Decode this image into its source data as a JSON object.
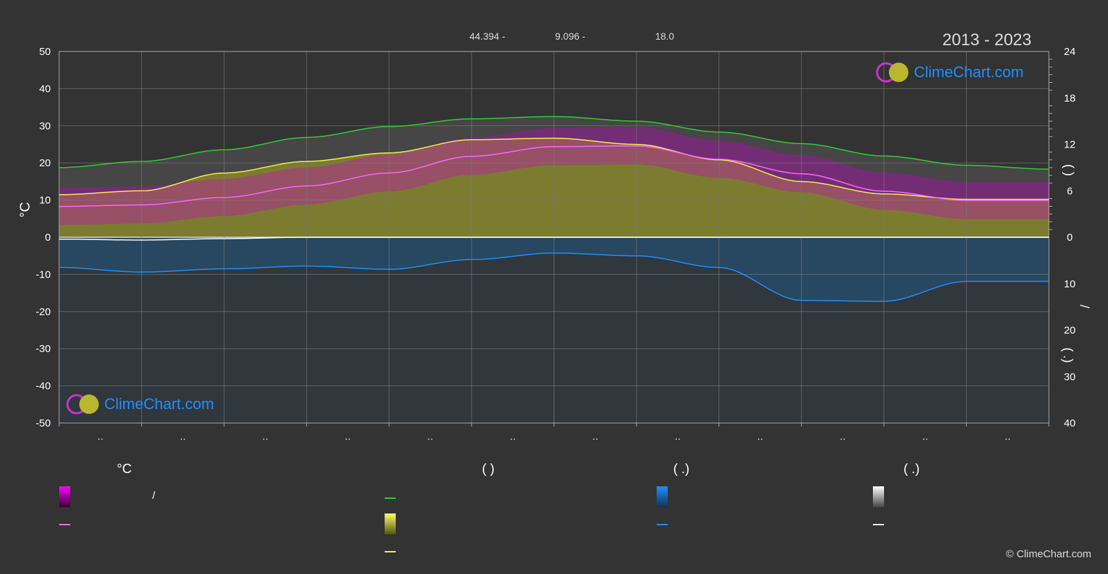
{
  "header": {
    "lat": "44.394 -",
    "lon": "9.096 -",
    "elev": "18.0",
    "range": "2013 - 2023"
  },
  "logo": {
    "text": "ClimeChart.com"
  },
  "copyright": "© ClimeChart.com",
  "axes": {
    "left_label": "°C",
    "right_top_label": "(   )",
    "right_bottom_label": "/",
    "right_bottom_label2": "(   .)"
  },
  "legend": {
    "col1_head": "°C",
    "col2_head": "(          )",
    "col3_head": "(   .)",
    "col4_head": "(   .)",
    "slash": "/"
  },
  "colors": {
    "background": "#333333",
    "grid": "#777777",
    "daylight": "#33cc33",
    "sunshine": "#f0f050",
    "temp_mean": "#ff66ff",
    "temp_range": "#cc00cc",
    "precip": "#1e90ff",
    "snow": "#ffffff",
    "logo_text": "#1e90ff"
  },
  "chart_data": {
    "type": "line",
    "title": "",
    "x_ticks": [
      "‥",
      "‥",
      "‥",
      "‥",
      "‥",
      "‥",
      "‥",
      "‥",
      "‥",
      "‥",
      "‥",
      "‥"
    ],
    "left_ylim": [
      -50,
      50
    ],
    "left_yticks": [
      50,
      40,
      30,
      20,
      10,
      0,
      -10,
      -20,
      -30,
      -40,
      -50
    ],
    "right_top_ylim": [
      0,
      24
    ],
    "right_top_yticks": [
      24,
      18,
      12,
      6,
      0
    ],
    "right_bottom_ylim": [
      0,
      40
    ],
    "right_bottom_yticks": [
      10,
      20,
      30,
      40
    ],
    "grid": true,
    "months_x": [
      0,
      1,
      2,
      3,
      4,
      5,
      6,
      7,
      8,
      9,
      10,
      11,
      12
    ],
    "series": [
      {
        "key": "daylight",
        "values": [
          9.0,
          9.8,
          11.3,
          12.9,
          14.3,
          15.3,
          15.6,
          15.0,
          13.6,
          12.1,
          10.5,
          9.3,
          8.8
        ]
      },
      {
        "key": "sunshine",
        "values": [
          5.5,
          6.0,
          8.3,
          9.8,
          10.9,
          12.6,
          12.8,
          12.0,
          10.0,
          7.2,
          5.6,
          4.9,
          4.9
        ]
      },
      {
        "key": "temp_mean",
        "values": [
          8.3,
          8.7,
          10.7,
          13.8,
          17.3,
          21.8,
          24.4,
          24.6,
          21.0,
          17.1,
          12.4,
          9.9,
          9.9
        ]
      },
      {
        "key": "precip",
        "values": [
          6.5,
          7.5,
          6.8,
          6.2,
          6.9,
          4.8,
          3.4,
          4.0,
          6.5,
          13.6,
          13.8,
          9.5,
          9.5
        ]
      },
      {
        "key": "snow",
        "values": [
          0.4,
          0.6,
          0.3,
          0.0,
          0.0,
          0.0,
          0.0,
          0.0,
          0.0,
          0.0,
          0.0,
          0.0,
          0.0
        ]
      }
    ]
  }
}
